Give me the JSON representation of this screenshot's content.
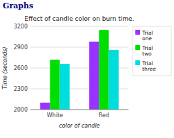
{
  "chart_data": {
    "type": "bar",
    "title": "Effect of candle color on burn time.",
    "xlabel": "color of candle",
    "ylabel": "Time (seconds)",
    "annotations": [
      "Graphs"
    ],
    "categories": [
      "White",
      "Red"
    ],
    "series": [
      {
        "name": "Trial\none",
        "color": "#9933ff",
        "values": [
          2100,
          2980
        ]
      },
      {
        "name": "Trial\ntwo",
        "color": "#00dd00",
        "values": [
          2720,
          3150
        ]
      },
      {
        "name": "Trial\nthree",
        "color": "#00dddd",
        "values": [
          2660,
          2860
        ]
      }
    ],
    "ylim": [
      2000,
      3200
    ],
    "yticks": [
      2000,
      2300,
      2600,
      2900,
      3200
    ],
    "grid": true,
    "legend": "right"
  }
}
